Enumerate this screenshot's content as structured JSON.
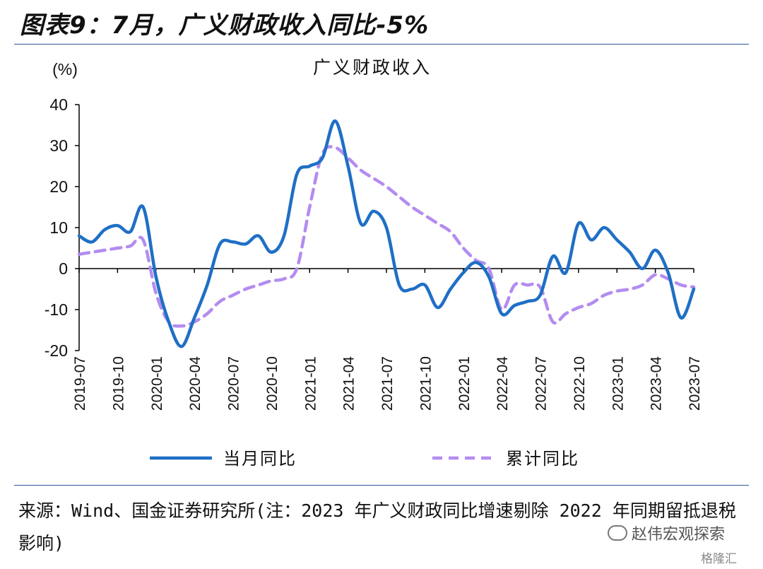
{
  "figure_title": "图表9：7月，广义财政收入同比-5%",
  "source_text": "来源：Wind、国金证券研究所(注：2023 年广义财政同比增速剔除 2022 年同期留抵退税影响)",
  "watermark_text": "赵伟宏观探索",
  "logo_text": "格隆汇",
  "colors": {
    "series_monthly": "#1f6fc5",
    "series_cumulative": "#b38cf0",
    "rule": "#2f5597",
    "axis": "#000000"
  },
  "chart_data": {
    "type": "line",
    "title": "广义财政收入",
    "unit_label": "(%)",
    "ylim": [
      -20,
      40
    ],
    "yticks": [
      -20,
      -10,
      0,
      10,
      20,
      30,
      40
    ],
    "x": [
      "2019-07",
      "2019-08",
      "2019-09",
      "2019-10",
      "2019-11",
      "2019-12",
      "2020-01",
      "2020-02",
      "2020-03",
      "2020-04",
      "2020-05",
      "2020-06",
      "2020-07",
      "2020-08",
      "2020-09",
      "2020-10",
      "2020-11",
      "2020-12",
      "2021-01",
      "2021-02",
      "2021-03",
      "2021-04",
      "2021-05",
      "2021-06",
      "2021-07",
      "2021-08",
      "2021-09",
      "2021-10",
      "2021-11",
      "2021-12",
      "2022-01",
      "2022-02",
      "2022-03",
      "2022-04",
      "2022-05",
      "2022-06",
      "2022-07",
      "2022-08",
      "2022-09",
      "2022-10",
      "2022-11",
      "2022-12",
      "2023-01",
      "2023-02",
      "2023-03",
      "2023-04",
      "2023-05",
      "2023-06",
      "2023-07"
    ],
    "xtick_labels": [
      "2019-07",
      "2019-10",
      "2020-01",
      "2020-04",
      "2020-07",
      "2020-10",
      "2021-01",
      "2021-04",
      "2021-07",
      "2021-10",
      "2022-01",
      "2022-04",
      "2022-07",
      "2022-10",
      "2023-01",
      "2023-04",
      "2023-07"
    ],
    "legend": "bottom",
    "series": [
      {
        "name": "当月同比",
        "style": "solid",
        "values": [
          8,
          6.5,
          9.5,
          10.5,
          9,
          15,
          -2,
          -13,
          -19,
          -12,
          -4,
          6,
          6.5,
          6,
          8,
          4,
          8,
          23,
          25,
          27,
          36,
          25,
          11,
          14,
          10,
          -4,
          -5,
          -4,
          -9.5,
          -5,
          -1,
          1.5,
          -2,
          -11,
          -9,
          -8,
          -6.5,
          3,
          -1,
          11,
          7,
          10,
          7,
          4,
          0,
          4.5,
          -1,
          -12,
          -5
        ]
      },
      {
        "name": "累计同比",
        "style": "dashed",
        "values": [
          3.5,
          4,
          4.5,
          5,
          5.5,
          7,
          -6,
          -13,
          -14,
          -13,
          -11,
          -8,
          -6.5,
          -5,
          -4,
          -3,
          -2.5,
          0,
          15,
          28,
          29.5,
          27,
          24,
          22,
          20,
          17.5,
          15,
          13,
          11,
          9,
          5,
          2,
          0,
          -10,
          -4,
          -4,
          -4.5,
          -13,
          -11,
          -9.5,
          -8.5,
          -6.5,
          -5.5,
          -5,
          -4,
          -1.5,
          -2.5,
          -4,
          -4.5
        ]
      }
    ]
  }
}
